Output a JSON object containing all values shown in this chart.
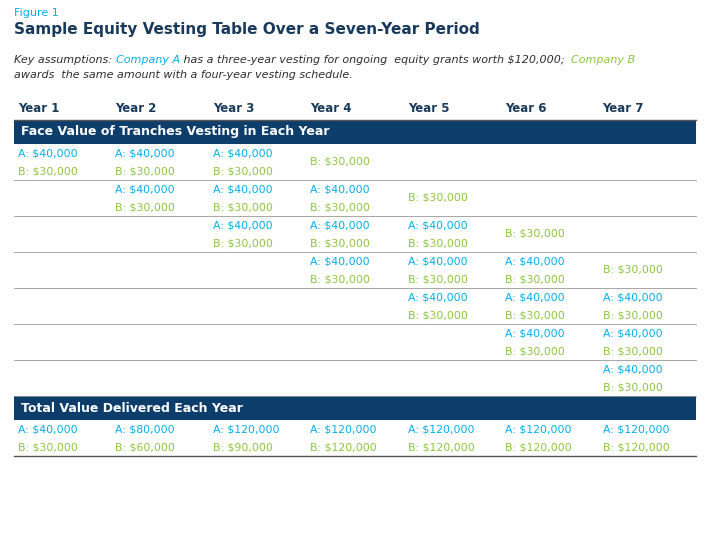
{
  "figure_label": "Figure 1",
  "title": "Sample Equity Vesting Table Over a Seven-Year Period",
  "line1_parts": [
    [
      "Key assumptions: ",
      "#2E2E2E"
    ],
    [
      "Company A",
      "#00AEEF"
    ],
    [
      " has a three-year vesting for ongoing  equity grants worth $120,000;  ",
      "#2E2E2E"
    ],
    [
      "Company B",
      "#8DC63F"
    ]
  ],
  "line2_parts": [
    [
      "awards  the same amount with a four-year vesting schedule.",
      "#2E2E2E"
    ]
  ],
  "col_headers": [
    "Year 1",
    "Year 2",
    "Year 3",
    "Year 4",
    "Year 5",
    "Year 6",
    "Year 7"
  ],
  "section1_header": "Face Value of Tranches Vesting in Each Year",
  "section2_header": "Total Value Delivered Each Year",
  "header_bg": "#0D3D6B",
  "header_text_color": "#FFFFFF",
  "color_A": "#00AEEF",
  "color_B": "#8DC63F",
  "tranche_rows": [
    [
      "A: $40,000\nB: $30,000",
      "A: $40,000\nB: $30,000",
      "A: $40,000\nB: $30,000",
      "B: $30,000",
      "",
      "",
      ""
    ],
    [
      "",
      "A: $40,000\nB: $30,000",
      "A: $40,000\nB: $30,000",
      "A: $40,000\nB: $30,000",
      "B: $30,000",
      "",
      ""
    ],
    [
      "",
      "",
      "A: $40,000\nB: $30,000",
      "A: $40,000\nB: $30,000",
      "A: $40,000\nB: $30,000",
      "B: $30,000",
      ""
    ],
    [
      "",
      "",
      "",
      "A: $40,000\nB: $30,000",
      "A: $40,000\nB: $30,000",
      "A: $40,000\nB: $30,000",
      "B: $30,000"
    ],
    [
      "",
      "",
      "",
      "",
      "A: $40,000\nB: $30,000",
      "A: $40,000\nB: $30,000",
      "A: $40,000\nB: $30,000"
    ],
    [
      "",
      "",
      "",
      "",
      "",
      "A: $40,000\nB: $30,000",
      "A: $40,000\nB: $30,000"
    ],
    [
      "",
      "",
      "",
      "",
      "",
      "",
      "A: $40,000\nB: $30,000"
    ]
  ],
  "total_rows": [
    [
      "A: $40,000\nB: $30,000",
      "A: $80,000\nB: $60,000",
      "A: $120,000\nB: $90,000",
      "A: $120,000\nB: $120,000",
      "A: $120,000\nB: $120,000",
      "A: $120,000\nB: $120,000",
      "A: $120,000\nB: $120,000"
    ]
  ],
  "bg_color": "#FFFFFF",
  "col_header_color": "#1A3A5C",
  "dark_line_color": "#555555",
  "light_line_color": "#999999"
}
